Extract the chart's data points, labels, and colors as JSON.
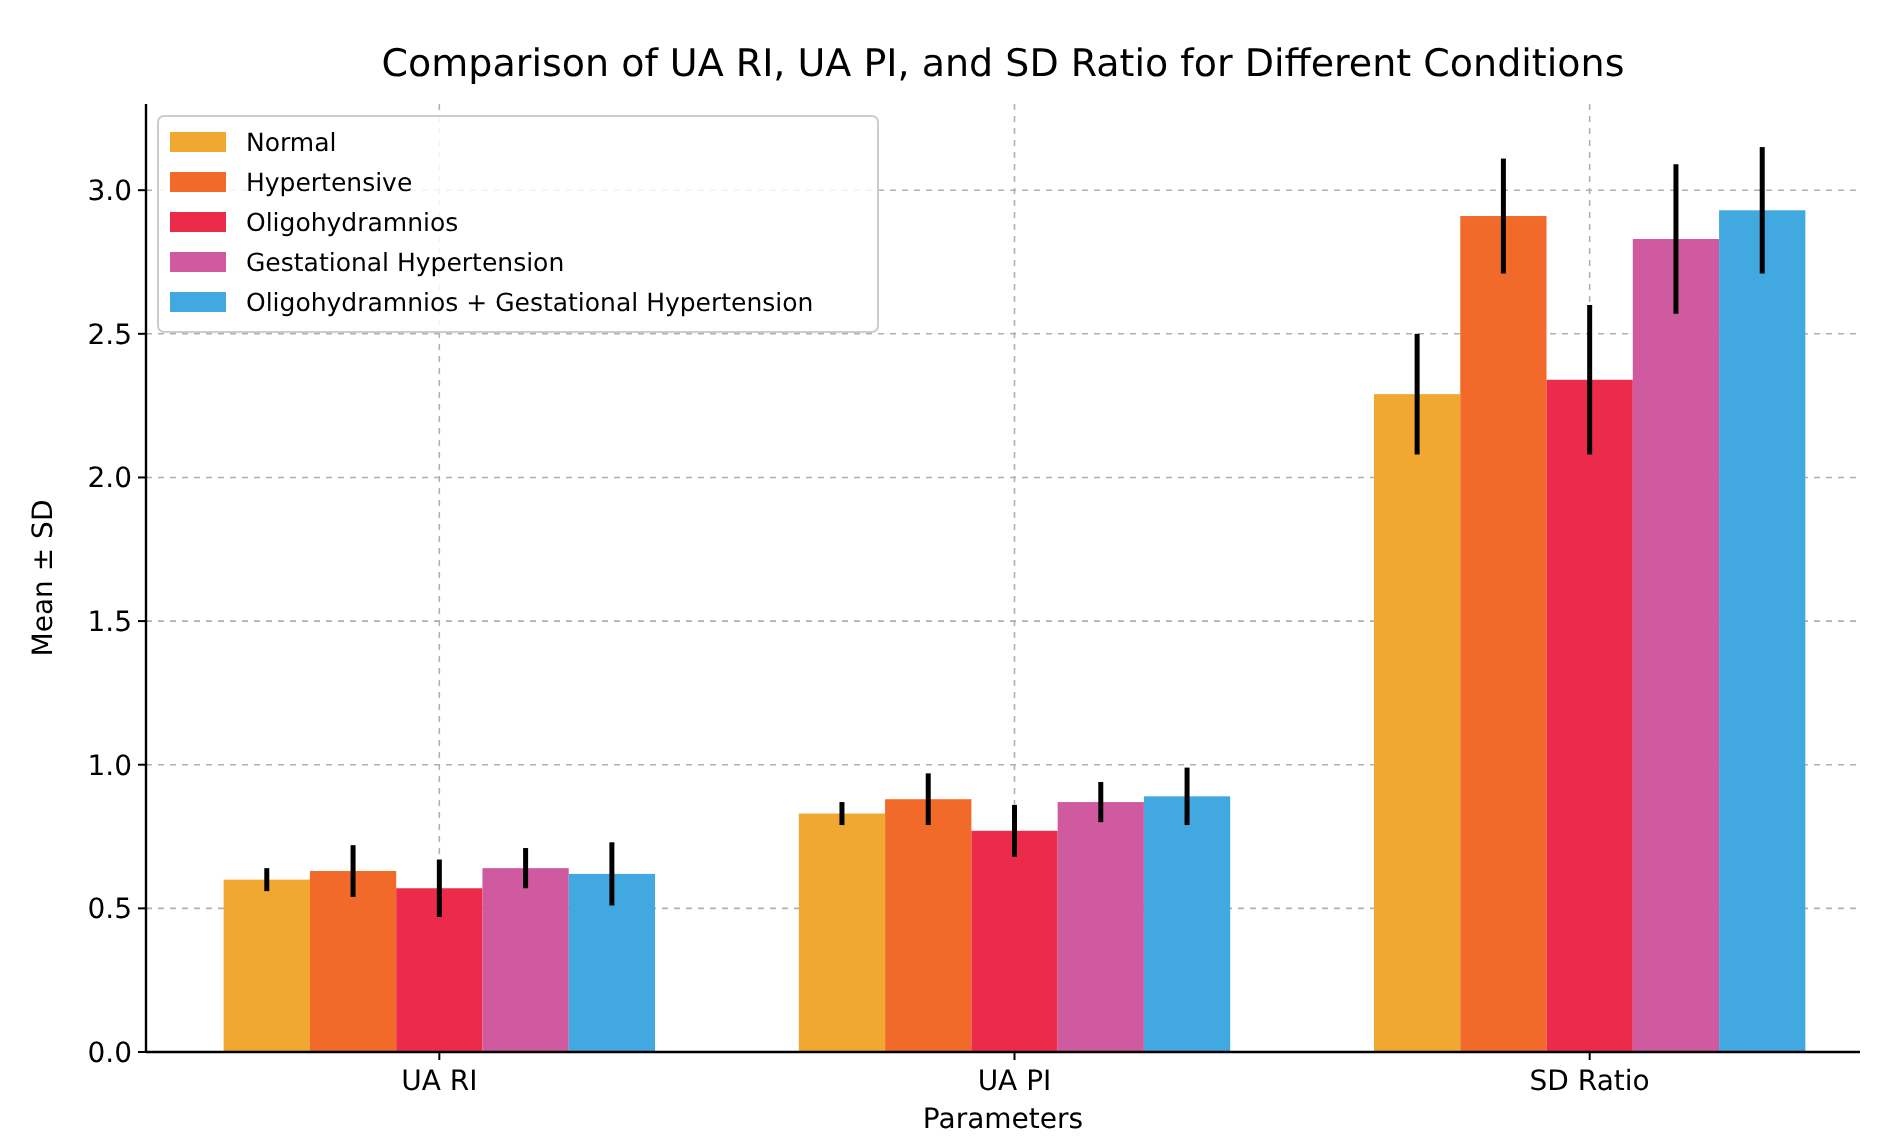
{
  "chart_data": {
    "type": "bar",
    "title": "Comparison of UA RI, UA PI, and SD Ratio for Different Conditions",
    "xlabel": "Parameters",
    "ylabel": "Mean ± SD",
    "categories": [
      "UA RI",
      "UA PI",
      "SD Ratio"
    ],
    "series": [
      {
        "name": "Normal",
        "color": "#f0a830",
        "values": [
          0.6,
          0.83,
          2.29
        ],
        "errors": [
          0.04,
          0.04,
          0.21
        ]
      },
      {
        "name": "Hypertensive",
        "color": "#f26a2a",
        "values": [
          0.63,
          0.88,
          2.91
        ],
        "errors": [
          0.09,
          0.09,
          0.2
        ]
      },
      {
        "name": "Oligohydramnios",
        "color": "#ec2b4a",
        "values": [
          0.57,
          0.77,
          2.34
        ],
        "errors": [
          0.1,
          0.09,
          0.26
        ]
      },
      {
        "name": "Gestational Hypertension",
        "color": "#d05aa0",
        "values": [
          0.64,
          0.87,
          2.83
        ],
        "errors": [
          0.07,
          0.07,
          0.26
        ]
      },
      {
        "name": "Oligohydramnios + Gestational Hypertension",
        "color": "#42a9e0",
        "values": [
          0.62,
          0.89,
          2.93
        ],
        "errors": [
          0.11,
          0.1,
          0.22
        ]
      }
    ],
    "ylim": [
      0,
      3.3
    ],
    "yticks": [
      {
        "value": 0,
        "label": "0.0"
      },
      {
        "value": 0.5,
        "label": "0.5"
      },
      {
        "value": 1,
        "label": "1.0"
      },
      {
        "value": 1.5,
        "label": "1.5"
      },
      {
        "value": 2,
        "label": "2.0"
      },
      {
        "value": 2.5,
        "label": "2.5"
      },
      {
        "value": 3,
        "label": "3.0"
      }
    ],
    "grid": true,
    "legend": "top left"
  }
}
